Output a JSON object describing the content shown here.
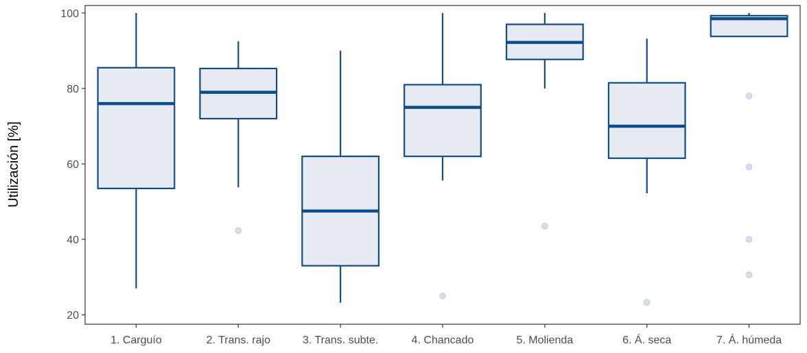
{
  "chart_data": {
    "type": "box",
    "ylabel": "Utilización [%]",
    "xlabel": "",
    "ylim": [
      17.5,
      102
    ],
    "yticks": [
      20,
      40,
      60,
      80,
      100
    ],
    "grid": false,
    "categories": [
      "1. Carguío",
      "2. Trans. rajo",
      "3. Trans. subte.",
      "4. Chancado",
      "5. Molienda",
      "6. Á. seca",
      "7. Á. húmeda"
    ],
    "boxes": [
      {
        "category": "1. Carguío",
        "whisker_low": 27,
        "q1": 53.5,
        "median": 76,
        "q3": 85.5,
        "whisker_high": 100,
        "outliers": []
      },
      {
        "category": "2. Trans. rajo",
        "whisker_low": 53.8,
        "q1": 72,
        "median": 79,
        "q3": 85.3,
        "whisker_high": 92.5,
        "outliers": [
          42.3
        ]
      },
      {
        "category": "3. Trans. subte.",
        "whisker_low": 23.2,
        "q1": 33,
        "median": 47.5,
        "q3": 62,
        "whisker_high": 90,
        "outliers": []
      },
      {
        "category": "4. Chancado",
        "whisker_low": 55.6,
        "q1": 62,
        "median": 75,
        "q3": 81,
        "whisker_high": 100,
        "outliers": [
          25
        ]
      },
      {
        "category": "5. Molienda",
        "whisker_low": 80,
        "q1": 87.7,
        "median": 92.2,
        "q3": 97,
        "whisker_high": 100,
        "outliers": [
          43.5
        ]
      },
      {
        "category": "6. Á. seca",
        "whisker_low": 52.2,
        "q1": 61.5,
        "median": 70,
        "q3": 81.5,
        "whisker_high": 93.2,
        "outliers": [
          23.3
        ]
      },
      {
        "category": "7. Á. húmeda",
        "whisker_low": 93.8,
        "q1": 93.8,
        "median": 98.5,
        "q3": 99.3,
        "whisker_high": 100,
        "outliers": [
          78,
          59.2,
          40,
          30.6
        ]
      }
    ],
    "colors": {
      "box_stroke": "#0f4c8a",
      "box_fill": "#e6ebf3",
      "outlier": "#b3c3db",
      "axis": "#333333",
      "tick_label": "#4d4d4d",
      "axis_title": "#000000"
    }
  }
}
